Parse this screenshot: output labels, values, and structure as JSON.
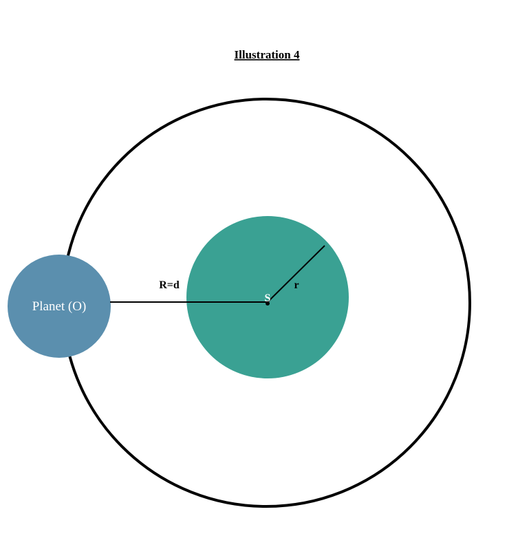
{
  "title": "Illustration 4",
  "planet": {
    "label": "Planet (O)",
    "color": "#5b8fae"
  },
  "star": {
    "label": "S",
    "color": "#3aa193"
  },
  "labels": {
    "distance": "R=d",
    "radius": "r"
  },
  "colors": {
    "orbit": "#000000",
    "background": "#ffffff",
    "line": "#000000"
  }
}
